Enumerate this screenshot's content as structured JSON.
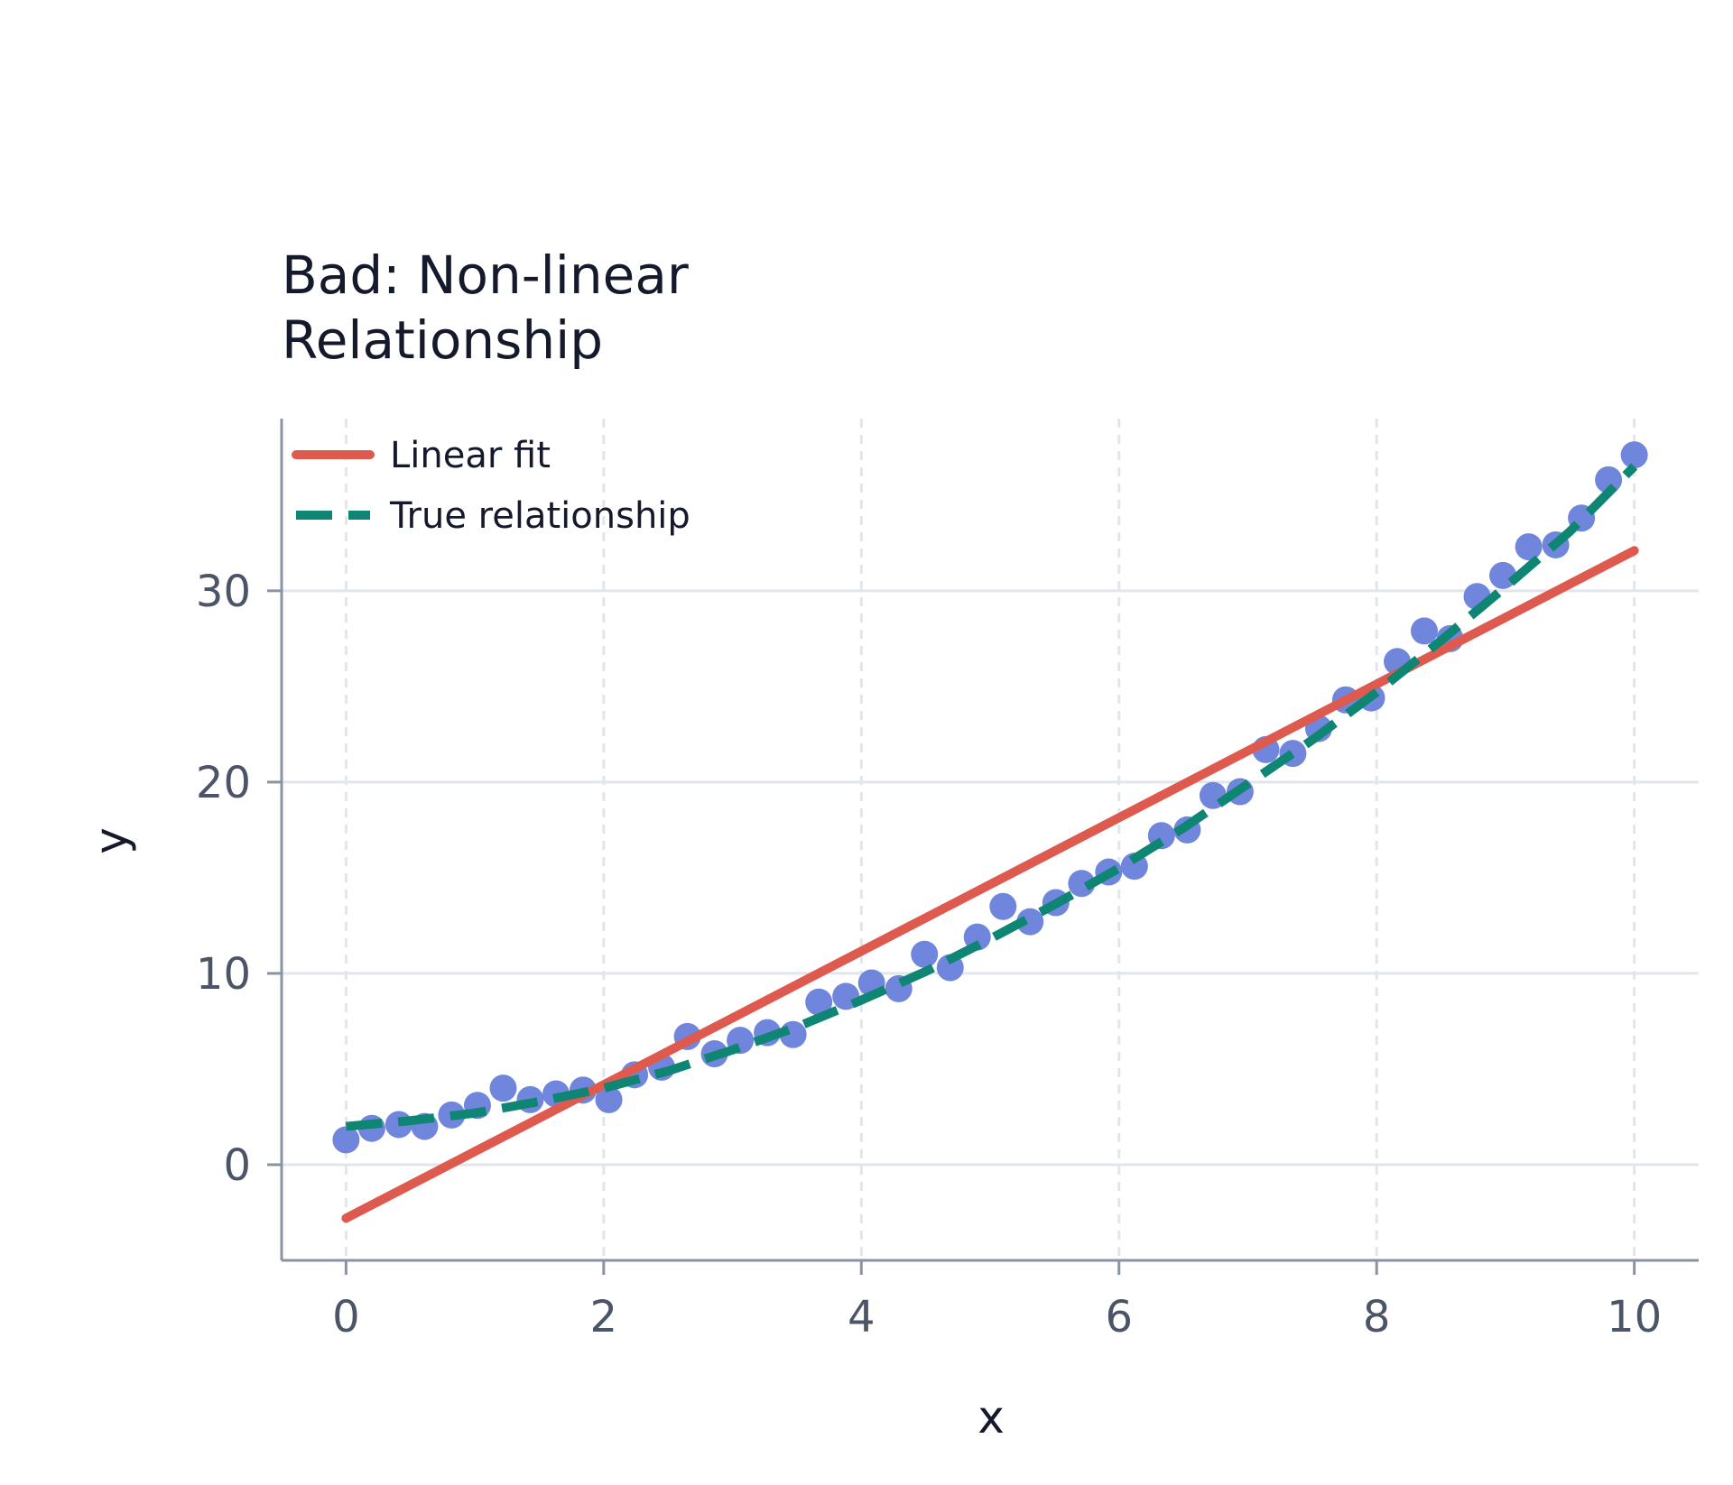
{
  "chart_data": {
    "type": "scatter",
    "title_lines": [
      "Bad: Non-linear",
      "Relationship"
    ],
    "xlabel": "x",
    "ylabel": "y",
    "xlim": [
      -0.5,
      10.5
    ],
    "ylim": [
      -5,
      39
    ],
    "xticks": [
      0,
      2,
      4,
      6,
      8,
      10
    ],
    "yticks": [
      0,
      10,
      20,
      30
    ],
    "grid": true,
    "legend_position": "top-left",
    "colors": {
      "points": "#6f86dc",
      "linear_fit": "#de5a4e",
      "true_relationship": "#0f8573",
      "grid": "#e1e5ec",
      "axis": "#8a93a3"
    },
    "points": {
      "x": [
        0,
        0.2,
        0.41,
        0.61,
        0.82,
        1.02,
        1.22,
        1.43,
        1.63,
        1.84,
        2.04,
        2.24,
        2.45,
        2.65,
        2.86,
        3.06,
        3.27,
        3.47,
        3.67,
        3.88,
        4.08,
        4.29,
        4.49,
        4.69,
        4.9,
        5.1,
        5.31,
        5.51,
        5.71,
        5.92,
        6.12,
        6.33,
        6.53,
        6.73,
        6.94,
        7.14,
        7.35,
        7.55,
        7.76,
        7.96,
        8.16,
        8.37,
        8.57,
        8.78,
        8.98,
        9.18,
        9.39,
        9.59,
        9.8,
        10
      ],
      "y": [
        1.3,
        1.9,
        2.1,
        2.0,
        2.6,
        3.1,
        4.0,
        3.4,
        3.7,
        3.9,
        3.4,
        4.7,
        5.1,
        6.7,
        5.8,
        6.5,
        6.9,
        6.8,
        8.5,
        8.8,
        9.5,
        9.2,
        11.0,
        10.3,
        11.9,
        13.5,
        12.7,
        13.7,
        14.7,
        15.3,
        15.6,
        17.2,
        17.5,
        19.3,
        19.5,
        21.7,
        21.5,
        22.8,
        24.3,
        24.4,
        26.3,
        27.9,
        27.5,
        29.7,
        30.8,
        32.3,
        32.4,
        33.8,
        35.8,
        37.1
      ]
    },
    "series": [
      {
        "name": "Linear fit",
        "style": "solid",
        "x": [
          0,
          10
        ],
        "y": [
          -2.8,
          32.1
        ]
      },
      {
        "name": "True relationship",
        "style": "dashed",
        "x": [
          0,
          0.5,
          1,
          1.5,
          2,
          2.5,
          3,
          3.5,
          4,
          4.5,
          5,
          5.5,
          6,
          6.5,
          7,
          7.5,
          8,
          8.5,
          9,
          9.5,
          10
        ],
        "y": [
          2.0,
          2.3,
          2.7,
          3.3,
          4.0,
          4.9,
          6.0,
          7.2,
          8.6,
          10.1,
          11.8,
          13.6,
          15.5,
          17.6,
          19.9,
          22.2,
          24.7,
          27.4,
          30.2,
          33.1,
          36.5
        ]
      }
    ]
  }
}
